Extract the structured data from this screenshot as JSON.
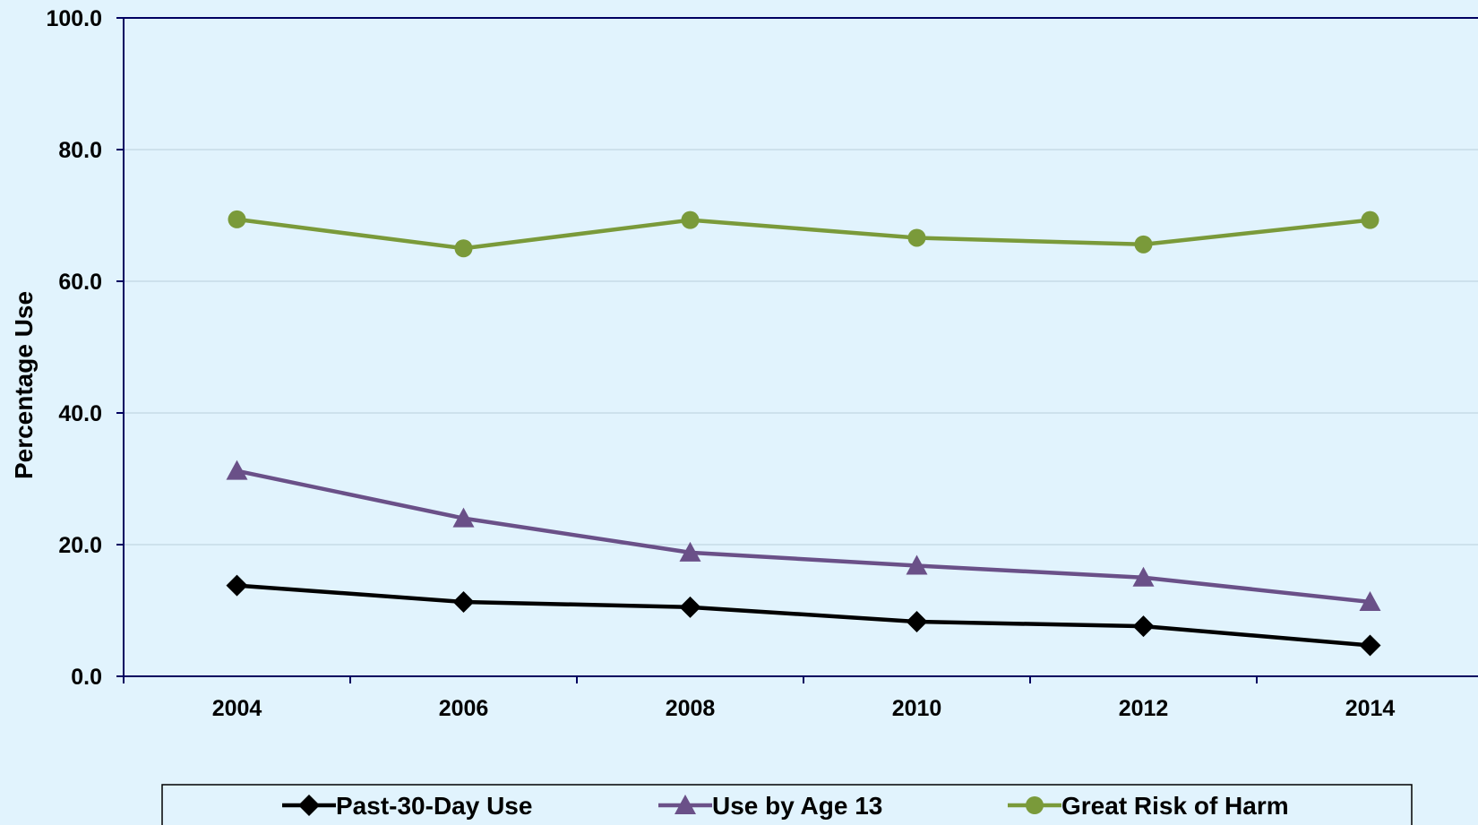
{
  "chart_data": {
    "type": "line",
    "title": "",
    "xlabel": "",
    "ylabel": "Percentage Use",
    "ylim": [
      0,
      100
    ],
    "yticks": [
      "0.0",
      "20.0",
      "40.0",
      "60.0",
      "80.0",
      "100.0"
    ],
    "categories": [
      "2004",
      "2006",
      "2008",
      "2010",
      "2012",
      "2014"
    ],
    "grid": true,
    "legend_position": "bottom",
    "series": [
      {
        "name": "Past-30-Day Use",
        "values": [
          13.8,
          11.3,
          10.5,
          8.3,
          7.6,
          4.7
        ],
        "color": "#000000",
        "marker": "diamond"
      },
      {
        "name": "Use by Age 13",
        "values": [
          31.2,
          24.0,
          18.8,
          16.8,
          15.0,
          11.3
        ],
        "color": "#6a5088",
        "marker": "triangle"
      },
      {
        "name": "Great Risk of Harm",
        "values": [
          69.4,
          65.0,
          69.3,
          66.6,
          65.6,
          69.3
        ],
        "color": "#7a9a3a",
        "marker": "circle"
      }
    ]
  }
}
